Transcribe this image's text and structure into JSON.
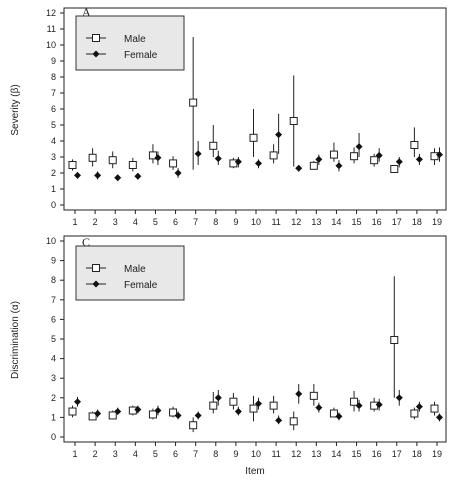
{
  "chart_data": [
    {
      "type": "scatter",
      "panel_label": "A",
      "ylabel": "Severity (β)",
      "xlabel": "",
      "ylim": [
        0,
        12
      ],
      "yticks": [
        0,
        1,
        2,
        3,
        4,
        5,
        6,
        7,
        8,
        9,
        10,
        11,
        12
      ],
      "categories": [
        "1",
        "2",
        "3",
        "4",
        "5",
        "6",
        "7",
        "8",
        "9",
        "10",
        "11",
        "12",
        "13",
        "14",
        "15",
        "16",
        "17",
        "18",
        "19"
      ],
      "legend_placement": "top-left",
      "legend": [
        "Male",
        "Female"
      ],
      "series": [
        {
          "name": "Male",
          "marker": "open-square",
          "values": [
            2.5,
            2.95,
            2.8,
            2.5,
            3.1,
            2.6,
            6.4,
            3.7,
            2.6,
            4.2,
            3.1,
            5.25,
            2.45,
            3.15,
            3.05,
            2.8,
            2.25,
            3.75,
            3.05
          ],
          "lower": [
            2.15,
            2.4,
            2.3,
            2.1,
            2.6,
            2.2,
            2.2,
            3.0,
            2.3,
            3.0,
            2.6,
            2.4,
            2.2,
            2.7,
            2.6,
            2.4,
            2.05,
            3.0,
            2.5
          ],
          "upper": [
            2.85,
            3.55,
            3.35,
            2.95,
            3.8,
            3.05,
            10.5,
            5.0,
            2.95,
            6.0,
            3.8,
            8.1,
            2.75,
            3.9,
            3.6,
            3.2,
            2.5,
            4.85,
            3.55
          ]
        },
        {
          "name": "Female",
          "marker": "filled-diamond",
          "values": [
            1.85,
            1.85,
            1.7,
            1.8,
            2.95,
            2.0,
            3.2,
            2.9,
            2.7,
            2.6,
            4.4,
            2.3,
            2.85,
            2.45,
            3.65,
            3.1,
            2.7,
            2.85,
            3.15
          ],
          "lower": [
            1.65,
            1.6,
            1.5,
            1.6,
            2.5,
            1.7,
            2.5,
            2.5,
            2.35,
            2.3,
            3.2,
            2.1,
            2.5,
            2.1,
            3.0,
            2.7,
            2.35,
            2.5,
            2.7
          ],
          "upper": [
            2.05,
            2.1,
            1.9,
            2.0,
            3.35,
            2.3,
            4.0,
            3.4,
            3.0,
            2.85,
            5.7,
            2.5,
            3.15,
            2.8,
            4.5,
            3.55,
            3.0,
            3.2,
            3.6
          ]
        }
      ]
    },
    {
      "type": "scatter",
      "panel_label": "C",
      "ylabel": "Discrimination (α)",
      "xlabel": "Item",
      "ylim": [
        0,
        10
      ],
      "yticks": [
        0,
        1,
        2,
        3,
        4,
        5,
        6,
        7,
        8,
        9,
        10
      ],
      "categories": [
        "1",
        "2",
        "3",
        "4",
        "5",
        "6",
        "7",
        "8",
        "9",
        "10",
        "11",
        "12",
        "13",
        "14",
        "15",
        "16",
        "17",
        "18",
        "19"
      ],
      "legend_placement": "top-left",
      "legend": [
        "Male",
        "Female"
      ],
      "series": [
        {
          "name": "Male",
          "marker": "open-square",
          "values": [
            1.3,
            1.05,
            1.1,
            1.35,
            1.15,
            1.25,
            0.6,
            1.6,
            1.8,
            1.45,
            1.6,
            0.8,
            2.1,
            1.2,
            1.8,
            1.6,
            4.95,
            1.2,
            1.45
          ],
          "lower": [
            1.0,
            0.85,
            0.9,
            1.1,
            0.9,
            1.0,
            0.25,
            1.2,
            1.4,
            0.8,
            1.2,
            0.35,
            1.6,
            1.0,
            1.3,
            1.3,
            2.0,
            0.9,
            1.1
          ],
          "upper": [
            1.6,
            1.3,
            1.35,
            1.6,
            1.45,
            1.55,
            1.0,
            2.3,
            2.25,
            2.1,
            2.1,
            1.3,
            2.7,
            1.5,
            2.35,
            2.0,
            8.2,
            1.5,
            1.8
          ]
        },
        {
          "name": "Female",
          "marker": "filled-diamond",
          "values": [
            1.8,
            1.2,
            1.3,
            1.4,
            1.35,
            1.1,
            1.1,
            2.0,
            1.3,
            1.7,
            0.85,
            2.2,
            1.5,
            1.05,
            1.6,
            1.65,
            2.0,
            1.55,
            1.0
          ],
          "lower": [
            1.55,
            1.0,
            1.15,
            1.2,
            1.1,
            0.9,
            0.9,
            1.6,
            1.1,
            1.4,
            0.65,
            1.7,
            1.25,
            0.85,
            1.3,
            1.35,
            1.6,
            1.3,
            0.8
          ],
          "upper": [
            2.05,
            1.4,
            1.5,
            1.6,
            1.6,
            1.3,
            1.3,
            2.4,
            1.55,
            2.0,
            1.1,
            2.7,
            1.75,
            1.25,
            1.9,
            1.95,
            2.4,
            1.8,
            1.2
          ]
        }
      ]
    }
  ]
}
